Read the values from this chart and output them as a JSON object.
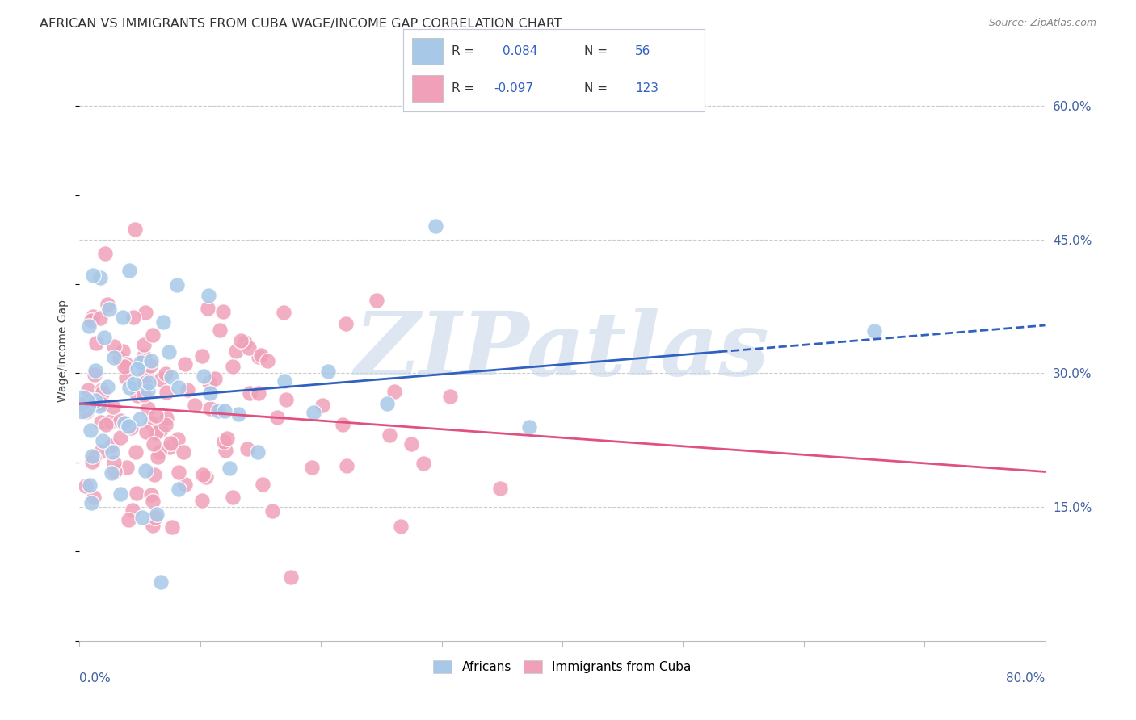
{
  "title": "AFRICAN VS IMMIGRANTS FROM CUBA WAGE/INCOME GAP CORRELATION CHART",
  "source": "Source: ZipAtlas.com",
  "ylabel": "Wage/Income Gap",
  "yticks_right": [
    "15.0%",
    "30.0%",
    "45.0%",
    "60.0%"
  ],
  "yticks_right_vals": [
    0.15,
    0.3,
    0.45,
    0.6
  ],
  "xlim": [
    0.0,
    0.8
  ],
  "ylim": [
    0.0,
    0.65
  ],
  "africans_color": "#a8c8e8",
  "cuba_color": "#f0a0b8",
  "trend_african_color": "#3060c0",
  "trend_cuba_color": "#e05080",
  "background_color": "#ffffff",
  "watermark_text": "ZIPatlas",
  "watermark_color": "#c8d8e8",
  "grid_color": "#cccccc",
  "legend_box_color": "#e8f0f8",
  "legend_box_border": "#c0c8d8",
  "title_color": "#333333",
  "source_color": "#888888",
  "axis_label_color": "#4060a0",
  "legend_text_color": "#333333",
  "legend_value_color": "#3060c0",
  "africans_R": 0.084,
  "africans_N": 56,
  "cuba_R": -0.097,
  "cuba_N": 123
}
